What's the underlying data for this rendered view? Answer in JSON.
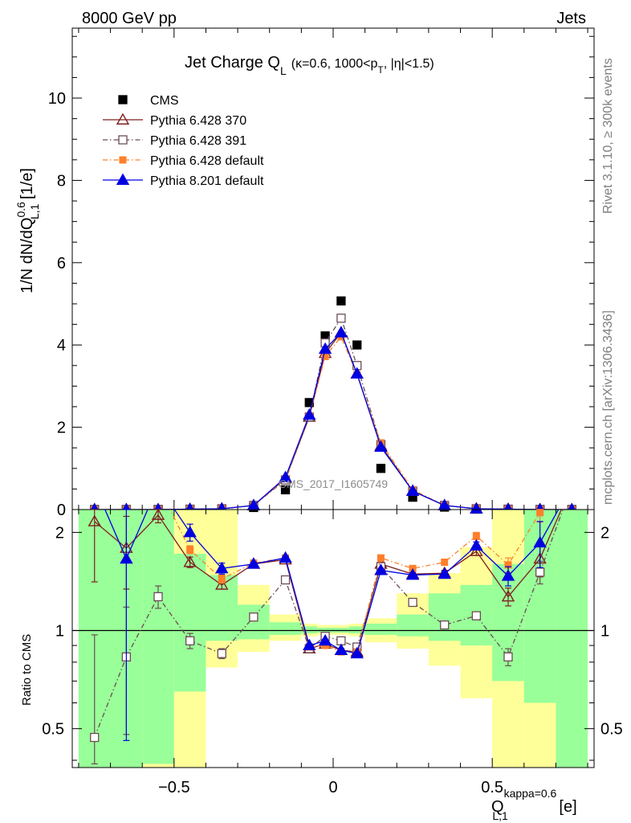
{
  "header": {
    "left": "8000 GeV pp",
    "right": "Jets"
  },
  "side": {
    "rivet": "Rivet 3.1.10, ≥ 300k events",
    "mcplots": "mcplots.cern.ch [arXiv:1306.3436]"
  },
  "watermark": "CMS_2017_I1605749",
  "colors": {
    "cms": "#000000",
    "p370": "#7f1f1f",
    "p391": "#6b4c55",
    "p6def": "#ff7f2a",
    "p8def": "#0000e0",
    "band_green": "#99ff99",
    "band_yellow": "#ffff99"
  },
  "chart_data": [
    {
      "type": "scatter",
      "panel": "main",
      "title": "Jet Charge Q_L (κ=0.6, 1000<p_T, |η|<1.5)",
      "title_parts": {
        "main": "Jet Charge Q",
        "sub": "L",
        "kinematics": "(κ=0.6, 1000<p",
        "kin_sub": "T",
        "kin_end": ", |η|<1.5)"
      },
      "ylabel": "1/N dN/dQ^{0.6}_{L,1} [1/e]",
      "ylabel_parts": {
        "pre": "1/N dN/dQ",
        "sup": "0.6",
        "sub": "L,1",
        "post": " [1/e]"
      },
      "xlim": [
        -0.82,
        0.82
      ],
      "ylim": [
        0,
        11.7
      ],
      "yticks": [
        0,
        2,
        4,
        6,
        8,
        10
      ],
      "ytick_labels": [
        "0",
        "2",
        "4",
        "6",
        "8",
        "10"
      ],
      "legend": [
        "CMS",
        "Pythia 6.428 370",
        "Pythia 6.428 391",
        "Pythia 6.428 default",
        "Pythia 8.201 default"
      ],
      "legend_position": "top-left",
      "x": [
        -0.75,
        -0.65,
        -0.55,
        -0.45,
        -0.35,
        -0.25,
        -0.15,
        -0.075,
        -0.025,
        0.025,
        0.075,
        0.15,
        0.25,
        0.35,
        0.45,
        0.55,
        0.65,
        0.75
      ],
      "series": [
        {
          "name": "CMS",
          "values": [
            0.0,
            0.0,
            0.0,
            0.0,
            0.01,
            0.05,
            0.48,
            2.6,
            4.22,
            5.07,
            4.0,
            1.0,
            0.3,
            0.06,
            0.01,
            0.0,
            0.0,
            0.0
          ]
        },
        {
          "name": "Pythia 6.428 370",
          "values": [
            0.0,
            0.0,
            0.0,
            0.01,
            0.02,
            0.1,
            0.75,
            2.25,
            3.8,
            4.3,
            3.3,
            1.55,
            0.45,
            0.1,
            0.02,
            0.01,
            0.0,
            0.0
          ]
        },
        {
          "name": "Pythia 6.428 391",
          "values": [
            0.0,
            0.0,
            0.0,
            0.01,
            0.02,
            0.1,
            0.72,
            2.25,
            4.05,
            4.65,
            3.5,
            1.58,
            0.45,
            0.1,
            0.02,
            0.01,
            0.0,
            0.0
          ]
        },
        {
          "name": "Pythia 6.428 default",
          "values": [
            0.0,
            0.0,
            0.0,
            0.01,
            0.02,
            0.1,
            0.75,
            2.28,
            3.72,
            4.2,
            3.28,
            1.62,
            0.48,
            0.1,
            0.02,
            0.01,
            0.0,
            0.0
          ]
        },
        {
          "name": "Pythia 8.201 default",
          "values": [
            0.0,
            0.0,
            0.0,
            0.01,
            0.02,
            0.1,
            0.78,
            2.3,
            3.9,
            4.3,
            3.3,
            1.52,
            0.45,
            0.1,
            0.02,
            0.01,
            0.0,
            0.0
          ]
        }
      ]
    },
    {
      "type": "scatter",
      "panel": "ratio",
      "ylabel": "Ratio to CMS",
      "xlabel": "Q^{kappa=0.6}_{L,1} [e]",
      "xlabel_parts": {
        "main": "Q",
        "sup": "kappa=0.6",
        "sub": "L,1",
        "post": " [e]"
      },
      "xlim": [
        -0.82,
        0.82
      ],
      "ylim": [
        0.38,
        2.35
      ],
      "yticks": [
        0.5,
        1,
        2
      ],
      "ytick_labels": [
        "0.5",
        "1",
        "2"
      ],
      "xticks": [
        -0.5,
        0,
        0.5
      ],
      "xtick_labels": [
        "−0.5",
        "0",
        "0.5"
      ],
      "bins": [
        [
          -0.8,
          -0.7
        ],
        [
          -0.7,
          -0.6
        ],
        [
          -0.6,
          -0.5
        ],
        [
          -0.5,
          -0.4
        ],
        [
          -0.4,
          -0.3
        ],
        [
          -0.3,
          -0.2
        ],
        [
          -0.2,
          -0.1
        ],
        [
          -0.1,
          -0.05
        ],
        [
          -0.05,
          0.0
        ],
        [
          0.0,
          0.05
        ],
        [
          0.05,
          0.1
        ],
        [
          0.1,
          0.2
        ],
        [
          0.2,
          0.3
        ],
        [
          0.3,
          0.4
        ],
        [
          0.4,
          0.5
        ],
        [
          0.5,
          0.6
        ],
        [
          0.6,
          0.7
        ],
        [
          0.7,
          0.8
        ]
      ],
      "band_green": [
        [
          0.3,
          2.4
        ],
        [
          0.3,
          2.4
        ],
        [
          0.39,
          2.4
        ],
        [
          0.65,
          1.72
        ],
        [
          0.93,
          1.48
        ],
        [
          0.94,
          1.2
        ],
        [
          0.97,
          1.06
        ],
        [
          0.98,
          1.03
        ],
        [
          0.985,
          1.02
        ],
        [
          0.985,
          1.02
        ],
        [
          0.98,
          1.03
        ],
        [
          0.97,
          1.05
        ],
        [
          0.96,
          1.12
        ],
        [
          0.93,
          1.3
        ],
        [
          0.9,
          1.38
        ],
        [
          0.7,
          1.6
        ],
        [
          0.6,
          2.4
        ],
        [
          0.3,
          2.4
        ]
      ],
      "band_yellow": [
        [
          0.3,
          2.4
        ],
        [
          0.3,
          2.4
        ],
        [
          0.3,
          2.4
        ],
        [
          0.3,
          2.4
        ],
        [
          0.77,
          2.4
        ],
        [
          0.86,
          1.38
        ],
        [
          0.93,
          1.12
        ],
        [
          0.96,
          1.05
        ],
        [
          0.97,
          1.04
        ],
        [
          0.97,
          1.04
        ],
        [
          0.96,
          1.05
        ],
        [
          0.92,
          1.09
        ],
        [
          0.88,
          1.3
        ],
        [
          0.78,
          1.5
        ],
        [
          0.62,
          1.8
        ],
        [
          0.37,
          2.4
        ],
        [
          0.3,
          2.4
        ],
        [
          0.3,
          2.4
        ]
      ],
      "x": [
        -0.75,
        -0.65,
        -0.55,
        -0.45,
        -0.35,
        -0.25,
        -0.15,
        -0.075,
        -0.025,
        0.025,
        0.075,
        0.15,
        0.25,
        0.35,
        0.45,
        0.55,
        0.65,
        0.75
      ],
      "series": [
        {
          "name": "Pythia 6.428 370",
          "values": [
            2.16,
            1.79,
            2.26,
            1.62,
            1.38,
            1.6,
            1.65,
            0.88,
            0.91,
            0.87,
            0.86,
            1.6,
            1.49,
            1.5,
            1.75,
            1.27,
            1.66,
            null
          ],
          "err": [
            0.75,
            0.45,
            0.12,
            0.06,
            0.04,
            0.02,
            0.02,
            0.01,
            0.01,
            0.01,
            0.01,
            0.02,
            0.02,
            0.03,
            0.05,
            0.08,
            0.2,
            0
          ]
        },
        {
          "name": "Pythia 6.428 391",
          "values": [
            0.47,
            0.83,
            1.27,
            0.93,
            0.85,
            1.1,
            1.43,
            0.88,
            0.96,
            0.93,
            0.89,
            1.57,
            1.22,
            1.04,
            1.11,
            0.83,
            1.51,
            null
          ],
          "err": [
            0.5,
            0.35,
            0.1,
            0.05,
            0.03,
            0.02,
            0.02,
            0.01,
            0.01,
            0.01,
            0.01,
            0.02,
            0.02,
            0.02,
            0.03,
            0.05,
            0.12,
            0
          ]
        },
        {
          "name": "Pythia 6.428 default",
          "values": [
            null,
            null,
            null,
            1.77,
            1.44,
            1.61,
            1.67,
            0.89,
            0.9,
            0.86,
            0.86,
            1.67,
            1.55,
            1.62,
            1.95,
            1.59,
            2.3,
            null
          ],
          "err": [
            0,
            0,
            0,
            0.05,
            0.04,
            0.02,
            0.02,
            0.01,
            0.01,
            0.01,
            0.01,
            0.02,
            0.02,
            0.03,
            0.05,
            0.08,
            0.15,
            0
          ]
        },
        {
          "name": "Pythia 8.201 default",
          "values": [
            null,
            1.66,
            null,
            2.0,
            1.55,
            1.6,
            1.67,
            0.9,
            0.93,
            0.87,
            0.85,
            1.53,
            1.48,
            1.49,
            1.82,
            1.47,
            1.86,
            null
          ],
          "err": [
            0,
            1.2,
            0,
            0.12,
            0.06,
            0.02,
            0.02,
            0.01,
            0.01,
            0.01,
            0.01,
            0.02,
            0.02,
            0.03,
            0.05,
            0.1,
            0.3,
            0
          ]
        }
      ]
    }
  ]
}
